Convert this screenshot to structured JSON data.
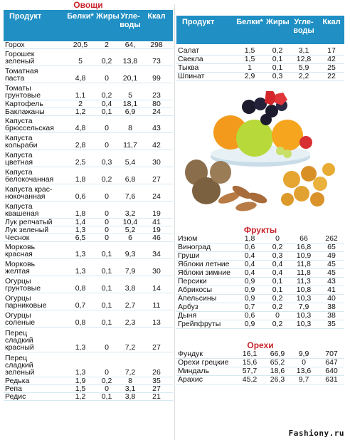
{
  "vegetables": {
    "title": "Овощи",
    "headers": [
      "Продукт",
      "Белки*",
      "Жиры",
      "Угле-\nводы",
      "Ккал"
    ],
    "rows": [
      {
        "name": "Горох",
        "p": "20,5",
        "f": "2",
        "c": "64,",
        "k": "298",
        "h": 1
      },
      {
        "name": "Горошек\nзеленый",
        "p": "5",
        "f": "0,2",
        "c": "13,8",
        "k": "73",
        "h": 2
      },
      {
        "name": "Томатная\nпаста",
        "p": "4,8",
        "f": "0",
        "c": "20,1",
        "k": "99",
        "h": 2
      },
      {
        "name": "Томаты\nгрунтовые",
        "p": "1,1",
        "f": "0,2",
        "c": "5",
        "k": "23",
        "h": 2
      },
      {
        "name": "Картофель",
        "p": "2",
        "f": "0,4",
        "c": "18,1",
        "k": "80",
        "h": 1
      },
      {
        "name": "Баклажаны",
        "p": "1,2",
        "f": "0,1",
        "c": "6,9",
        "k": "24",
        "h": 1
      },
      {
        "name": "Капуста\nбрюссельская",
        "p": "4,8",
        "f": "0",
        "c": "8",
        "k": "43",
        "h": 2
      },
      {
        "name": "Капуста\nкольраби",
        "p": "2,8",
        "f": "0",
        "c": "11,7",
        "k": "42",
        "h": 2
      },
      {
        "name": "Капуста\nцветная",
        "p": "2,5",
        "f": "0,3",
        "c": "5,4",
        "k": "30",
        "h": 2
      },
      {
        "name": "Капуста\nбелокочанная",
        "p": "1,8",
        "f": "0,2",
        "c": "6,8",
        "k": "27",
        "h": 2
      },
      {
        "name": "Капуста крас-\nнокочанная",
        "p": "0,6",
        "f": "0",
        "c": "7,6",
        "k": "24",
        "h": 2
      },
      {
        "name": "Капуста\nквашеная",
        "p": "1,8",
        "f": "0",
        "c": "3,2",
        "k": "19",
        "h": 2
      },
      {
        "name": "Лук репчатый",
        "p": "1,4",
        "f": "0",
        "c": "10,4",
        "k": "41",
        "h": 1
      },
      {
        "name": "Лук зеленый",
        "p": "1,3",
        "f": "0",
        "c": "5,2",
        "k": "19",
        "h": 1
      },
      {
        "name": "Чеснок",
        "p": "6,5",
        "f": "0",
        "c": "6",
        "k": "46",
        "h": 1
      },
      {
        "name": "Морковь\nкрасная",
        "p": "1,3",
        "f": "0,1",
        "c": "9,3",
        "k": "34",
        "h": 2
      },
      {
        "name": "Морковь\nжелтая",
        "p": "1,3",
        "f": "0,1",
        "c": "7,9",
        "k": "30",
        "h": 2
      },
      {
        "name": "Огурцы\nгрунтовые",
        "p": "0,8",
        "f": "0,1",
        "c": "3,8",
        "k": "14",
        "h": 2
      },
      {
        "name": "Огурцы\nпарниковые",
        "p": "0,7",
        "f": "0,1",
        "c": "2,7",
        "k": "11",
        "h": 2
      },
      {
        "name": "Огурцы\nсоленые",
        "p": "0,8",
        "f": "0,1",
        "c": "2,3",
        "k": "13",
        "h": 2
      },
      {
        "name": "Перец\nсладкий\nкрасный",
        "p": "1,3",
        "f": "0",
        "c": "7,2",
        "k": "27",
        "h": 3
      },
      {
        "name": "Перец\nсладкий\nзеленый",
        "p": "1,3",
        "f": "0",
        "c": "7,2",
        "k": "26",
        "h": 3
      },
      {
        "name": "Редька",
        "p": "1,9",
        "f": "0,2",
        "c": "8",
        "k": "35",
        "h": 1
      },
      {
        "name": "Репа",
        "p": "1,5",
        "f": "0",
        "c": "3,1",
        "k": "27",
        "h": 1
      },
      {
        "name": "Редис",
        "p": "1,2",
        "f": "0,1",
        "c": "3,8",
        "k": "21",
        "h": 1
      }
    ]
  },
  "right_table": {
    "headers": [
      "Продукт",
      "Белки*",
      "Жиры",
      "Угле-\nводы",
      "Ккал"
    ],
    "rows": [
      {
        "name": "Салат",
        "p": "1,5",
        "f": "0,2",
        "c": "3,1",
        "k": "17"
      },
      {
        "name": "Свекла",
        "p": "1,5",
        "f": "0,1",
        "c": "12,8",
        "k": "42"
      },
      {
        "name": "Тыква",
        "p": "1",
        "f": "0,1",
        "c": "5,9",
        "k": "25"
      },
      {
        "name": "Шпинат",
        "p": "2,9",
        "f": "0,3",
        "c": "2,2",
        "k": "22"
      }
    ]
  },
  "fruits": {
    "title": "Фрукты",
    "rows": [
      {
        "name": "Изюм",
        "p": "1,8",
        "f": "0",
        "c": "66",
        "k": "262"
      },
      {
        "name": "Виноград",
        "p": "0,6",
        "f": "0,2",
        "c": "16,8",
        "k": "65"
      },
      {
        "name": "Груши",
        "p": "0,4",
        "f": "0,3",
        "c": "10,9",
        "k": "49"
      },
      {
        "name": "Яблоки летние",
        "p": "0,4",
        "f": "0,4",
        "c": "11,8",
        "k": "45"
      },
      {
        "name": "Яблоки зимние",
        "p": "0,4",
        "f": "0,4",
        "c": "11,8",
        "k": "45"
      },
      {
        "name": "Персики",
        "p": "0,9",
        "f": "0,1",
        "c": "11,3",
        "k": "43"
      },
      {
        "name": "Абрикосы",
        "p": "0,9",
        "f": "0,1",
        "c": "10,8",
        "k": "41"
      },
      {
        "name": "Апельсины",
        "p": "0,9",
        "f": "0,2",
        "c": "10,3",
        "k": "40"
      },
      {
        "name": "Арбуз",
        "p": "0,7",
        "f": "0,2",
        "c": "7,9",
        "k": "38"
      },
      {
        "name": "Дыня",
        "p": "0,6",
        "f": "0",
        "c": "10,3",
        "k": "38"
      },
      {
        "name": "Грейпфруты",
        "p": "0,9",
        "f": "0,2",
        "c": "10,3",
        "k": "35"
      }
    ]
  },
  "nuts": {
    "title": "Орехи",
    "rows": [
      {
        "name": "Фундук",
        "p": "16,1",
        "f": "66,9",
        "c": "9,9",
        "k": "707"
      },
      {
        "name": "Орехи грецкие",
        "p": "15,6",
        "f": "65,2",
        "c": "0",
        "k": "647"
      },
      {
        "name": "Миндаль",
        "p": "57,7",
        "f": "18,6",
        "c": "13,6",
        "k": "640"
      },
      {
        "name": "Арахис",
        "p": "45,2",
        "f": "26,3",
        "c": "9,7",
        "k": "631"
      }
    ]
  },
  "brand": "Fashiony.ru",
  "colors": {
    "header_bg": "#1f8fc4",
    "title_red": "#c8242b",
    "row_border": "#d6e8f2"
  }
}
